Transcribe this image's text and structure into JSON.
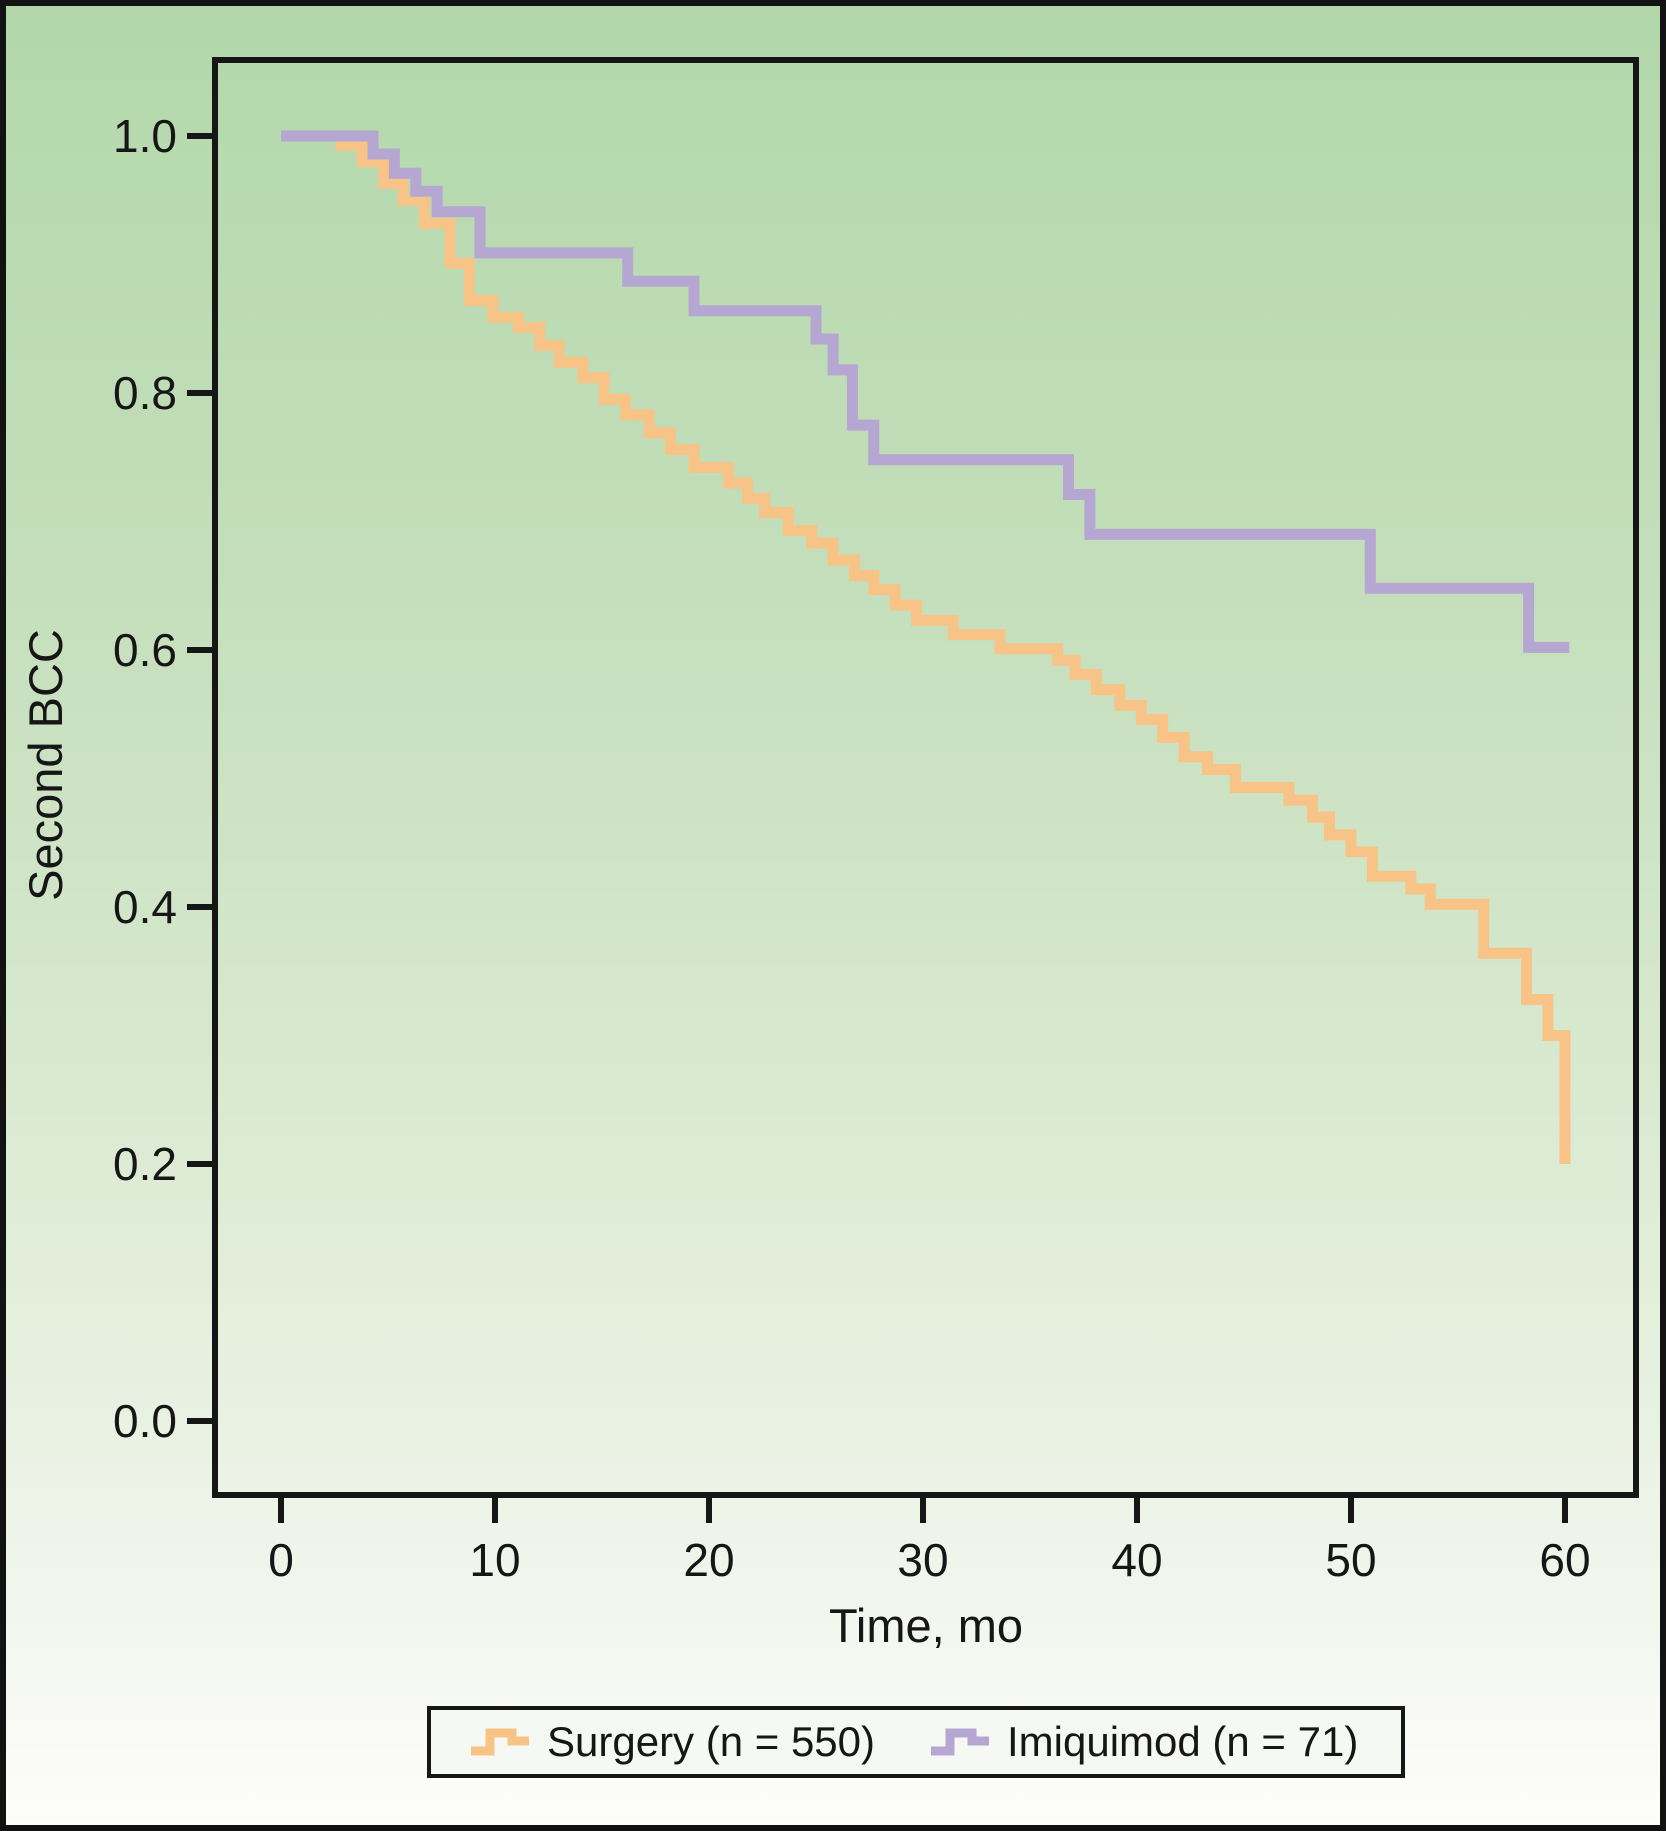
{
  "chart_data": {
    "type": "line",
    "subtype": "kaplan-meier-step",
    "title": "",
    "xlabel": "Time, mo",
    "ylabel": "Second BCC",
    "xlim": [
      0,
      60
    ],
    "ylim": [
      0.0,
      1.0
    ],
    "x_ticks": [
      0,
      10,
      20,
      30,
      40,
      50,
      60
    ],
    "x_tick_labels": [
      "0",
      "10",
      "20",
      "30",
      "40",
      "50",
      "60"
    ],
    "y_ticks": [
      1.0,
      0.8,
      0.6,
      0.4,
      0.2,
      0.0
    ],
    "y_tick_labels": [
      "1.0",
      "0.8",
      "0.6",
      "0.4",
      "0.2",
      "0.0"
    ],
    "grid": false,
    "legend_position": "bottom-center-boxed",
    "series": [
      {
        "name": "Surgery",
        "legend_label": "Surgery (n = 550)",
        "n": 550,
        "color": "#F8C387",
        "points": [
          [
            0,
            1.0
          ],
          [
            2.8,
            0.993
          ],
          [
            3.8,
            0.98
          ],
          [
            4.8,
            0.963
          ],
          [
            5.7,
            0.95
          ],
          [
            6.7,
            0.932
          ],
          [
            7.9,
            0.901
          ],
          [
            8.8,
            0.872
          ],
          [
            9.9,
            0.859
          ],
          [
            11.1,
            0.851
          ],
          [
            12.1,
            0.837
          ],
          [
            13.0,
            0.824
          ],
          [
            14.1,
            0.812
          ],
          [
            15.1,
            0.795
          ],
          [
            16.1,
            0.783
          ],
          [
            17.2,
            0.769
          ],
          [
            18.2,
            0.756
          ],
          [
            19.3,
            0.742
          ],
          [
            20.9,
            0.73
          ],
          [
            21.8,
            0.718
          ],
          [
            22.6,
            0.707
          ],
          [
            23.7,
            0.693
          ],
          [
            24.8,
            0.683
          ],
          [
            25.8,
            0.67
          ],
          [
            26.8,
            0.658
          ],
          [
            27.7,
            0.647
          ],
          [
            28.7,
            0.635
          ],
          [
            29.7,
            0.623
          ],
          [
            31.4,
            0.612
          ],
          [
            33.6,
            0.601
          ],
          [
            36.3,
            0.592
          ],
          [
            37.1,
            0.581
          ],
          [
            38.1,
            0.569
          ],
          [
            39.2,
            0.557
          ],
          [
            40.2,
            0.546
          ],
          [
            41.2,
            0.532
          ],
          [
            42.2,
            0.517
          ],
          [
            43.3,
            0.507
          ],
          [
            44.6,
            0.493
          ],
          [
            47.1,
            0.483
          ],
          [
            48.2,
            0.47
          ],
          [
            49.0,
            0.456
          ],
          [
            50.0,
            0.443
          ],
          [
            51.0,
            0.424
          ],
          [
            52.8,
            0.414
          ],
          [
            53.7,
            0.402
          ],
          [
            56.2,
            0.364
          ],
          [
            58.2,
            0.328
          ],
          [
            59.2,
            0.3
          ],
          [
            60.0,
            0.2
          ]
        ]
      },
      {
        "name": "Imiquimod",
        "legend_label": "Imiquimod (n = 71)",
        "n": 71,
        "color": "#B5A7D2",
        "points": [
          [
            0,
            1.0
          ],
          [
            4.3,
            0.986
          ],
          [
            5.3,
            0.971
          ],
          [
            6.3,
            0.957
          ],
          [
            7.3,
            0.941
          ],
          [
            9.3,
            0.909
          ],
          [
            16.2,
            0.887
          ],
          [
            19.3,
            0.864
          ],
          [
            25.0,
            0.842
          ],
          [
            25.8,
            0.818
          ],
          [
            26.7,
            0.775
          ],
          [
            27.7,
            0.748
          ],
          [
            36.8,
            0.721
          ],
          [
            37.8,
            0.69
          ],
          [
            50.9,
            0.648
          ],
          [
            58.3,
            0.602
          ],
          [
            60.2,
            0.602
          ]
        ]
      }
    ]
  },
  "style": {
    "axis_color": "#161616",
    "frame_color": "#121212",
    "line_width": 11,
    "background_top": "#b1d6aa",
    "background_bottom": "#fdfdfc",
    "legend_background": "#f5f8f3"
  }
}
